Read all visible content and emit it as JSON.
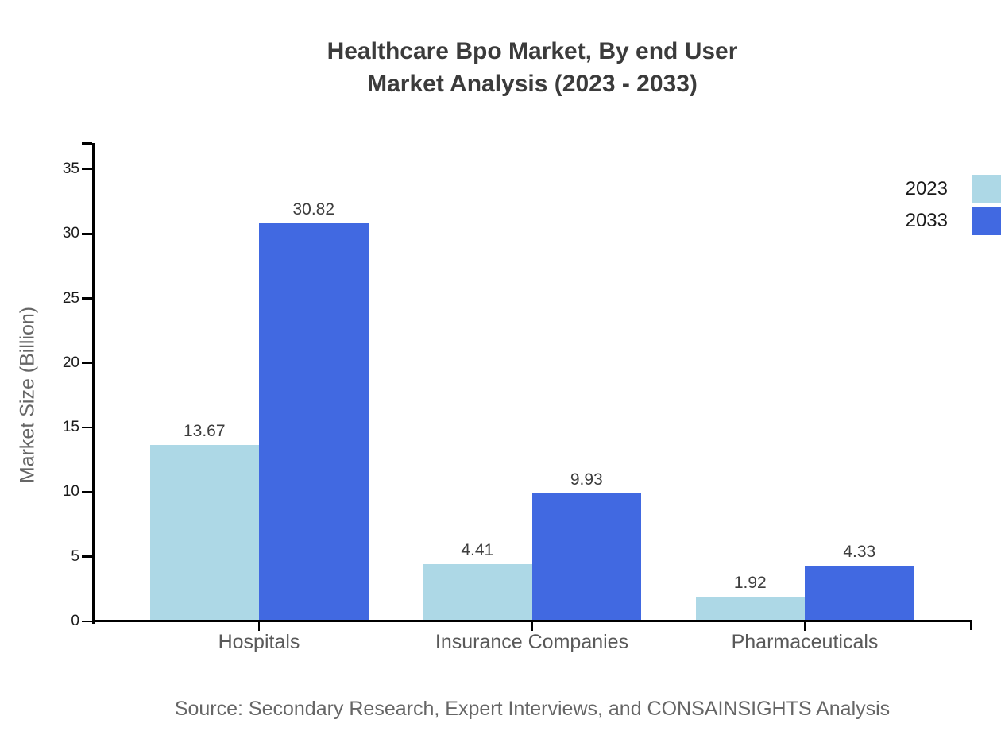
{
  "title": "Healthcare Bpo Market, By end User\nMarket Analysis (2023 - 2033)",
  "source": "Source: Secondary Research, Expert Interviews, and CONSAINSIGHTS Analysis",
  "chart_data": {
    "type": "bar",
    "title": "Healthcare Bpo Market, By end User Market Analysis (2023 - 2033)",
    "categories": [
      "Hospitals",
      "Insurance Companies",
      "Pharmaceuticals"
    ],
    "series": [
      {
        "name": "2023",
        "color": "#ADD8E6",
        "values": [
          13.67,
          4.41,
          1.92
        ]
      },
      {
        "name": "2033",
        "color": "#4169E1",
        "values": [
          30.82,
          9.93,
          4.33
        ]
      }
    ],
    "xlabel": "",
    "ylabel": "Market Size (Billion)",
    "ylim": [
      0,
      37
    ],
    "y_ticks": [
      0,
      5,
      10,
      15,
      20,
      25,
      30,
      35
    ],
    "grid": false,
    "legend_position": "top-right",
    "value_labels": true,
    "value_label_format": "2dp"
  },
  "style": {
    "background": "#FFFFFF",
    "axis_color": "#000000",
    "title_color": "#3B3B3B",
    "tick_label_color": "#1A1A1A",
    "value_label_color": "#3D3D3D",
    "category_label_color": "#595959",
    "axis_title_color": "#666666",
    "source_color": "#666666"
  }
}
